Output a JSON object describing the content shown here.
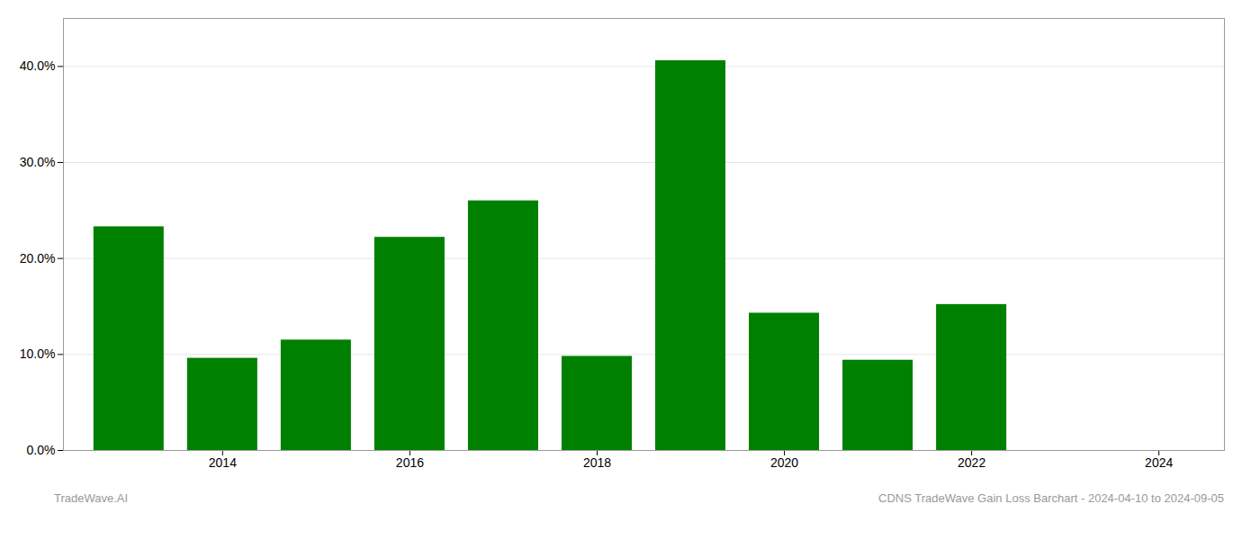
{
  "chart_data": {
    "type": "bar",
    "x": [
      2013,
      2014,
      2015,
      2016,
      2017,
      2018,
      2019,
      2020,
      2021,
      2022,
      2023
    ],
    "values": [
      0.233,
      0.096,
      0.115,
      0.222,
      0.26,
      0.098,
      0.406,
      0.143,
      0.094,
      0.152,
      0.0
    ],
    "color": "#008000",
    "xlim": [
      2012.3,
      2024.7
    ],
    "xticks": [
      2014,
      2016,
      2018,
      2020,
      2022,
      2024
    ],
    "ylim": [
      0,
      0.45
    ],
    "yticks": [
      {
        "value": 0.0,
        "label": "0.0%"
      },
      {
        "value": 0.1,
        "label": "10.0%"
      },
      {
        "value": 0.2,
        "label": "20.0%"
      },
      {
        "value": 0.3,
        "label": "30.0%"
      },
      {
        "value": 0.4,
        "label": "40.0%"
      }
    ],
    "grid": true,
    "annotations": [
      "TradeWave.AI",
      "CDNS TradeWave Gain Loss Barchart - 2024-04-10 to 2024-09-05"
    ]
  }
}
